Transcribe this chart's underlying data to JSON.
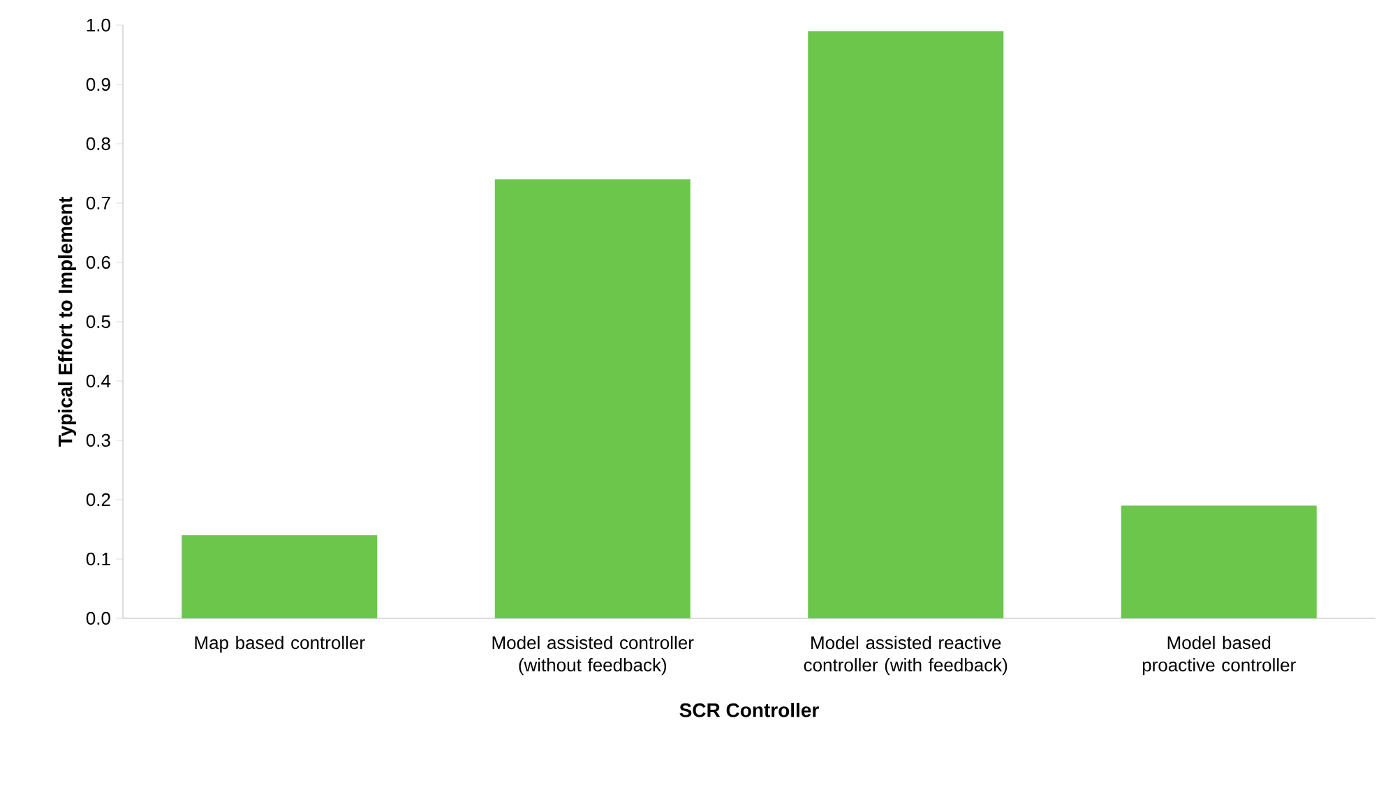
{
  "chart_data": {
    "type": "bar",
    "xlabel": "SCR Controller",
    "ylabel": "Typical Effort to Implement",
    "categories": [
      "Map based controller",
      "Model assisted controller (without feedback)",
      "Model assisted reactive controller (with feedback)",
      "Model based proactive controller"
    ],
    "values": [
      0.14,
      0.74,
      0.99,
      0.19
    ],
    "color": "#6cc64c",
    "ylim": [
      0,
      1
    ],
    "yticks": [
      {
        "value": 0,
        "label": "0.0"
      },
      {
        "value": 0.1,
        "label": "0.1"
      },
      {
        "value": 0.2,
        "label": "0.2"
      },
      {
        "value": 0.3,
        "label": "0.3"
      },
      {
        "value": 0.4,
        "label": "0.4"
      },
      {
        "value": 0.5,
        "label": "0.5"
      },
      {
        "value": 0.6,
        "label": "0.6"
      },
      {
        "value": 0.7,
        "label": "0.7"
      },
      {
        "value": 0.8,
        "label": "0.8"
      },
      {
        "value": 0.9,
        "label": "0.9"
      },
      {
        "value": 1.0,
        "label": "1.0"
      }
    ],
    "grid": false
  }
}
